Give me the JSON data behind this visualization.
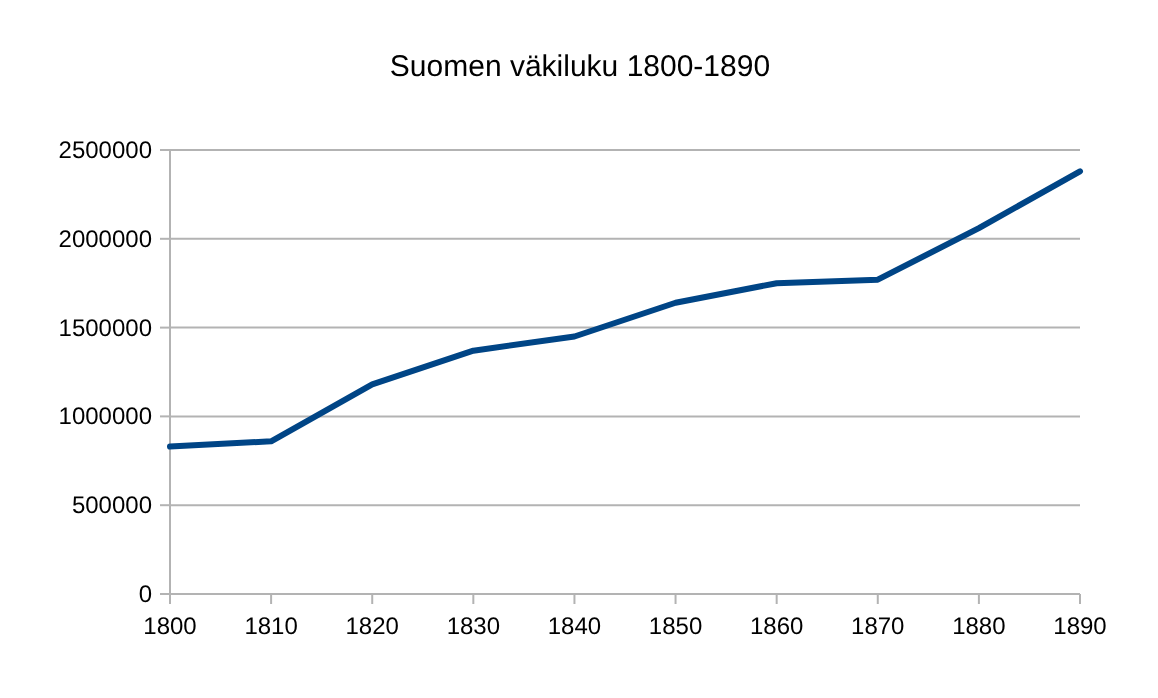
{
  "chart_data": {
    "type": "line",
    "title": "Suomen väkiluku 1800-1890",
    "x": [
      1800,
      1810,
      1820,
      1830,
      1840,
      1850,
      1860,
      1870,
      1880,
      1890
    ],
    "series": [
      {
        "color": "#004586",
        "values": [
          830000,
          860000,
          1180000,
          1370000,
          1450000,
          1640000,
          1750000,
          1770000,
          2060000,
          2380000
        ]
      }
    ],
    "xlim": [
      1800,
      1890
    ],
    "xticks": [
      1800,
      1810,
      1820,
      1830,
      1840,
      1850,
      1860,
      1870,
      1880,
      1890
    ],
    "ylim": [
      0,
      2500000
    ],
    "yticks": [
      0,
      500000,
      1000000,
      1500000,
      2000000,
      2500000
    ],
    "grid": "y",
    "marker": "none",
    "line_style": "solid"
  }
}
